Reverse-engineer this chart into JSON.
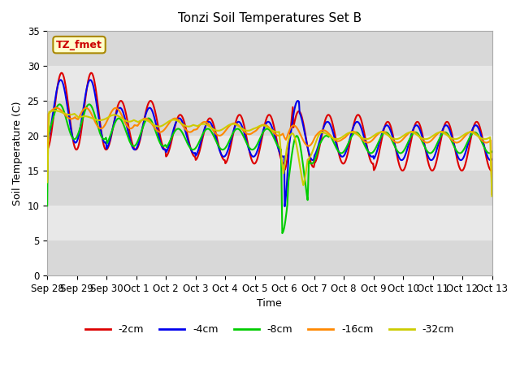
{
  "title": "Tonzi Soil Temperatures Set B",
  "xlabel": "Time",
  "ylabel": "Soil Temperature (C)",
  "ylim": [
    0,
    35
  ],
  "annotation_text": "TZ_fmet",
  "annotation_bg": "#ffffcc",
  "annotation_border": "#aa8800",
  "annotation_text_color": "#cc0000",
  "tick_labels": [
    "Sep 28",
    "Sep 29",
    "Sep 30",
    "Oct 1",
    "Oct 2",
    "Oct 3",
    "Oct 4",
    "Oct 5",
    "Oct 6",
    "Oct 7",
    "Oct 8",
    "Oct 9",
    "Oct 10",
    "Oct 11",
    "Oct 12",
    "Oct 13"
  ],
  "legend_labels": [
    "-2cm",
    "-4cm",
    "-8cm",
    "-16cm",
    "-32cm"
  ],
  "legend_colors": [
    "#dd0000",
    "#0000ee",
    "#00cc00",
    "#ff8800",
    "#cccc00"
  ],
  "line_colors": [
    "#dd0000",
    "#0000ee",
    "#00cc00",
    "#ff8800",
    "#cccc00"
  ],
  "bg_light": "#f0f0f0",
  "bg_dark": "#d8d8d8"
}
